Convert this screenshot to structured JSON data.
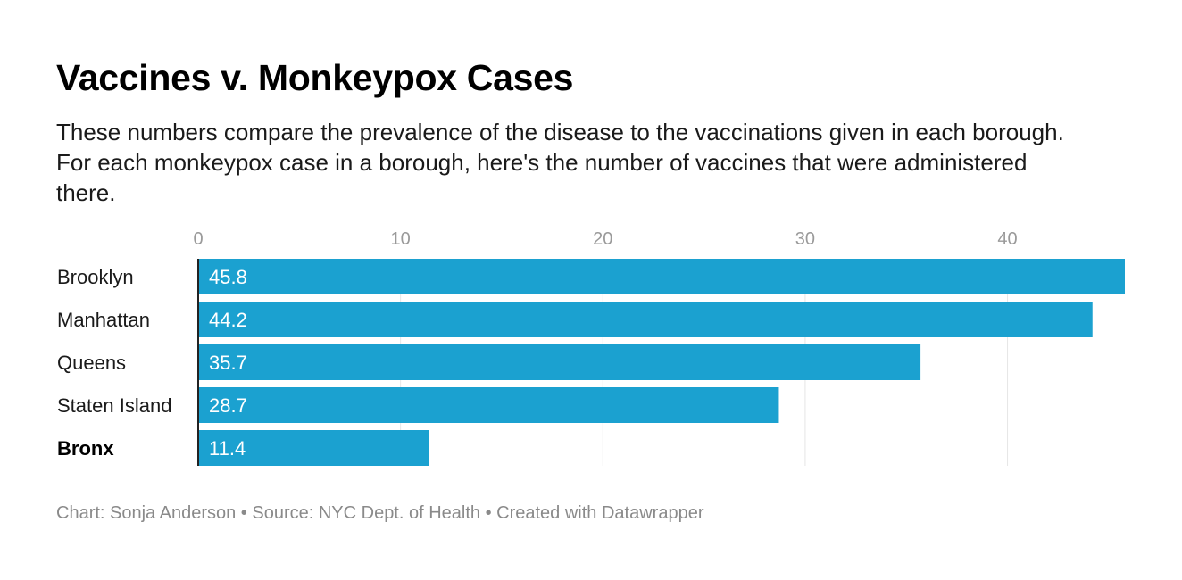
{
  "title": "Vaccines v. Monkeypox Cases",
  "subtitle": "These numbers compare the prevalence of the disease to the vaccinations given in each borough. For each monkeypox case in a borough, here's the number of vaccines that were administered there.",
  "footer": {
    "text": "Chart: Sonja Anderson • Source: NYC Dept. of Health • Created with Datawrapper"
  },
  "chart_data": {
    "type": "bar",
    "orientation": "horizontal",
    "categories": [
      "Brooklyn",
      "Manhattan",
      "Queens",
      "Staten Island",
      "Bronx"
    ],
    "values": [
      45.8,
      44.2,
      35.7,
      28.7,
      11.4
    ],
    "value_labels": [
      "45.8",
      "44.2",
      "35.7",
      "28.7",
      "11.4"
    ],
    "bold_categories": [
      "Bronx"
    ],
    "x_ticks": [
      0,
      10,
      20,
      30,
      40
    ],
    "xlim": [
      0,
      45.8
    ],
    "x_axis_position": "top",
    "grid": true,
    "legend": "none",
    "colors": {
      "bar": "#1ba1d0",
      "bar_label": "#ffffff",
      "grid": "#e6e6e6",
      "tick_label": "#9a9a9a",
      "baseline": "#222222",
      "category_label": "#1a1a1a"
    }
  }
}
